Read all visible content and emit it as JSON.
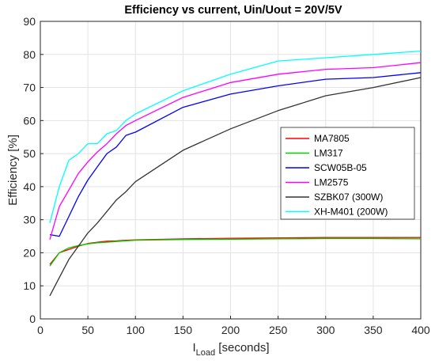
{
  "chart_data": {
    "type": "line",
    "title": "Efficiency vs current, Uin/Uout = 20V/5V",
    "xlabel_main": "I",
    "xlabel_sub": "Load",
    "xlabel_unit": " [seconds]",
    "ylabel": "Efficiency [%]",
    "xlim": [
      0,
      400
    ],
    "ylim": [
      0,
      90
    ],
    "xticks": [
      0,
      50,
      100,
      150,
      200,
      250,
      300,
      350,
      400
    ],
    "yticks": [
      0,
      10,
      20,
      30,
      40,
      50,
      60,
      70,
      80,
      90
    ],
    "grid": true,
    "legend_position": "right",
    "series": [
      {
        "name": "MA7805",
        "color": "#ff0000",
        "x": [
          10,
          20,
          30,
          40,
          50,
          60,
          70,
          80,
          90,
          100,
          150,
          200,
          250,
          300,
          350,
          400
        ],
        "y": [
          16.5,
          20,
          21,
          22,
          22.8,
          23.2,
          23.5,
          23.6,
          23.8,
          23.9,
          24.2,
          24.4,
          24.5,
          24.6,
          24.6,
          24.6
        ]
      },
      {
        "name": "LM317",
        "color": "#00cc00",
        "x": [
          10,
          20,
          30,
          40,
          50,
          60,
          70,
          80,
          90,
          100,
          150,
          200,
          250,
          300,
          350,
          400
        ],
        "y": [
          16,
          20,
          21.5,
          22.2,
          22.7,
          23,
          23.2,
          23.4,
          23.6,
          23.8,
          24,
          24.1,
          24.2,
          24.3,
          24.3,
          24.2
        ]
      },
      {
        "name": "SCW05B-05",
        "color": "#0000ff",
        "x": [
          10,
          20,
          30,
          40,
          50,
          60,
          70,
          80,
          90,
          95,
          100,
          150,
          200,
          250,
          300,
          350,
          400
        ],
        "y": [
          25.5,
          25,
          31,
          37,
          42,
          46,
          50,
          52,
          55.5,
          56,
          56.5,
          64,
          68,
          70.5,
          72.5,
          73,
          74.5
        ]
      },
      {
        "name": "LM2575",
        "color": "#ff00ff",
        "x": [
          10,
          20,
          30,
          40,
          50,
          60,
          70,
          80,
          90,
          100,
          150,
          200,
          250,
          300,
          350,
          400
        ],
        "y": [
          24,
          34,
          39,
          44,
          47.5,
          50.5,
          53,
          56,
          58.5,
          60,
          67,
          71.5,
          74,
          75.5,
          76,
          77.5
        ]
      },
      {
        "name": "SZBK07 (300W)",
        "color": "#333333",
        "x": [
          10,
          20,
          30,
          40,
          50,
          60,
          70,
          80,
          90,
          100,
          150,
          200,
          250,
          300,
          350,
          400
        ],
        "y": [
          7,
          12.5,
          18,
          22,
          26,
          29,
          32.5,
          36,
          38.5,
          41.5,
          51,
          57.5,
          63,
          67.5,
          70,
          73
        ]
      },
      {
        "name": "XH-M401 (200W)",
        "color": "#00ffff",
        "x": [
          10,
          20,
          30,
          40,
          50,
          55,
          60,
          70,
          75,
          80,
          90,
          100,
          150,
          200,
          250,
          300,
          350,
          400
        ],
        "y": [
          29,
          40,
          48,
          50,
          53,
          53,
          53,
          56,
          56.5,
          57,
          60,
          62,
          69,
          74,
          78,
          79,
          80,
          81
        ]
      }
    ]
  }
}
